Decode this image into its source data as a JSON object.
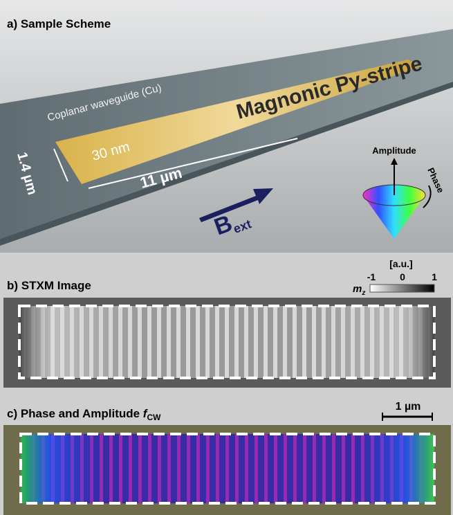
{
  "panel_a": {
    "label": "a) Sample Scheme",
    "waveguide": "Coplanar waveguide (Cu)",
    "stripe": "Magnonic Py-stripe",
    "thickness": "30 nm",
    "width": "1.4 µm",
    "length": "11 µm",
    "field": "B",
    "field_sub": "ext",
    "amplitude": "Amplitude",
    "phase": "Phase"
  },
  "panel_b": {
    "label": "b) STXM Image",
    "unit": "[a.u.]",
    "colorbar": [
      "-1",
      "0",
      "1"
    ],
    "axis": "m",
    "axis_sub": "z"
  },
  "panel_c": {
    "label": "c) Phase and Amplitude ",
    "label_f": "f",
    "label_sub": "CW",
    "scale": "1 µm"
  }
}
